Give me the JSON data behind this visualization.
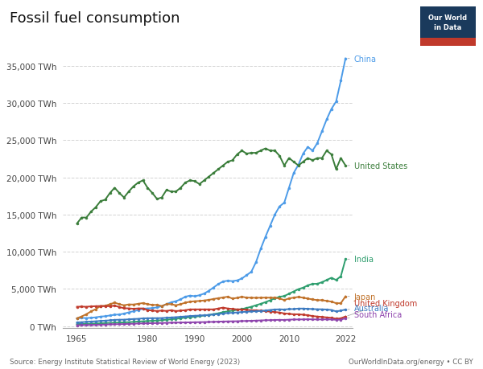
{
  "title": "Fossil fuel consumption",
  "subtitle_source": "Source: Energy Institute Statistical Review of World Energy (2023)",
  "subtitle_right": "OurWorldInData.org/energy • CC BY",
  "yticks": [
    0,
    5000,
    10000,
    15000,
    20000,
    25000,
    30000,
    35000
  ],
  "ytick_labels": [
    "0 TWh",
    "5,000 TWh",
    "10,000 TWh",
    "15,000 TWh",
    "20,000 TWh",
    "25,000 TWh",
    "30,000 TWh",
    "35,000 TWh"
  ],
  "xticks": [
    1965,
    1980,
    1990,
    2000,
    2010,
    2022
  ],
  "xlim": [
    1962,
    2023.5
  ],
  "ylim": [
    -300,
    37000
  ],
  "background_color": "#ffffff",
  "grid_color": "#d3d3d3",
  "series": {
    "China": {
      "color": "#4c9be8",
      "marker": "o",
      "markersize": 2.0,
      "linewidth": 1.4,
      "years": [
        1965,
        1966,
        1967,
        1968,
        1969,
        1970,
        1971,
        1972,
        1973,
        1974,
        1975,
        1976,
        1977,
        1978,
        1979,
        1980,
        1981,
        1982,
        1983,
        1984,
        1985,
        1986,
        1987,
        1988,
        1989,
        1990,
        1991,
        1992,
        1993,
        1994,
        1995,
        1996,
        1997,
        1998,
        1999,
        2000,
        2001,
        2002,
        2003,
        2004,
        2005,
        2006,
        2007,
        2008,
        2009,
        2010,
        2011,
        2012,
        2013,
        2014,
        2015,
        2016,
        2017,
        2018,
        2019,
        2020,
        2021,
        2022
      ],
      "values": [
        1050,
        1100,
        1080,
        1120,
        1180,
        1280,
        1330,
        1430,
        1530,
        1560,
        1680,
        1850,
        2000,
        2150,
        2350,
        2380,
        2420,
        2520,
        2680,
        2950,
        3200,
        3350,
        3600,
        3950,
        4100,
        4020,
        4150,
        4380,
        4750,
        5200,
        5650,
        6000,
        6100,
        6050,
        6150,
        6400,
        6850,
        7300,
        8600,
        10400,
        12000,
        13500,
        15000,
        16100,
        16600,
        18600,
        20600,
        21700,
        23200,
        24100,
        23600,
        24600,
        26200,
        27800,
        29200,
        30200,
        33000,
        36000
      ]
    },
    "United States": {
      "color": "#3a7d3a",
      "marker": "o",
      "markersize": 2.0,
      "linewidth": 1.4,
      "years": [
        1965,
        1966,
        1967,
        1968,
        1969,
        1970,
        1971,
        1972,
        1973,
        1974,
        1975,
        1976,
        1977,
        1978,
        1979,
        1980,
        1981,
        1982,
        1983,
        1984,
        1985,
        1986,
        1987,
        1988,
        1989,
        1990,
        1991,
        1992,
        1993,
        1994,
        1995,
        1996,
        1997,
        1998,
        1999,
        2000,
        2001,
        2002,
        2003,
        2004,
        2005,
        2006,
        2007,
        2008,
        2009,
        2010,
        2011,
        2012,
        2013,
        2014,
        2015,
        2016,
        2017,
        2018,
        2019,
        2020,
        2021,
        2022
      ],
      "values": [
        13800,
        14600,
        14600,
        15400,
        16000,
        16800,
        17000,
        17900,
        18600,
        17900,
        17300,
        18100,
        18800,
        19300,
        19600,
        18600,
        17900,
        17100,
        17300,
        18300,
        18100,
        18100,
        18600,
        19300,
        19600,
        19500,
        19100,
        19600,
        20100,
        20600,
        21100,
        21600,
        22100,
        22300,
        23100,
        23600,
        23200,
        23300,
        23300,
        23600,
        23900,
        23600,
        23600,
        22900,
        21600,
        22600,
        22100,
        21600,
        22100,
        22600,
        22300,
        22600,
        22600,
        23600,
        23100,
        21100,
        22600,
        21600
      ]
    },
    "India": {
      "color": "#2e9e6e",
      "marker": "o",
      "markersize": 2.0,
      "linewidth": 1.4,
      "years": [
        1965,
        1966,
        1967,
        1968,
        1969,
        1970,
        1971,
        1972,
        1973,
        1974,
        1975,
        1976,
        1977,
        1978,
        1979,
        1980,
        1981,
        1982,
        1983,
        1984,
        1985,
        1986,
        1987,
        1988,
        1989,
        1990,
        1991,
        1992,
        1993,
        1994,
        1995,
        1996,
        1997,
        1998,
        1999,
        2000,
        2001,
        2002,
        2003,
        2004,
        2005,
        2006,
        2007,
        2008,
        2009,
        2010,
        2011,
        2012,
        2013,
        2014,
        2015,
        2016,
        2017,
        2018,
        2019,
        2020,
        2021,
        2022
      ],
      "values": [
        270,
        290,
        300,
        320,
        345,
        375,
        405,
        430,
        460,
        475,
        500,
        535,
        570,
        610,
        650,
        680,
        715,
        755,
        800,
        860,
        920,
        985,
        1050,
        1150,
        1200,
        1260,
        1340,
        1420,
        1510,
        1620,
        1720,
        1880,
        1980,
        2080,
        2190,
        2290,
        2440,
        2600,
        2800,
        3000,
        3220,
        3470,
        3730,
        3940,
        4040,
        4350,
        4660,
        4970,
        5170,
        5480,
        5680,
        5690,
        5900,
        6200,
        6500,
        6200,
        6700,
        9000
      ]
    },
    "Japan": {
      "color": "#c0722a",
      "marker": "o",
      "markersize": 2.0,
      "linewidth": 1.4,
      "years": [
        1965,
        1966,
        1967,
        1968,
        1969,
        1970,
        1971,
        1972,
        1973,
        1974,
        1975,
        1976,
        1977,
        1978,
        1979,
        1980,
        1981,
        1982,
        1983,
        1984,
        1985,
        1986,
        1987,
        1988,
        1989,
        1990,
        1991,
        1992,
        1993,
        1994,
        1995,
        1996,
        1997,
        1998,
        1999,
        2000,
        2001,
        2002,
        2003,
        2004,
        2005,
        2006,
        2007,
        2008,
        2009,
        2010,
        2011,
        2012,
        2013,
        2014,
        2015,
        2016,
        2017,
        2018,
        2019,
        2020,
        2021,
        2022
      ],
      "values": [
        1050,
        1300,
        1600,
        1980,
        2280,
        2700,
        2720,
        2950,
        3150,
        2950,
        2800,
        2920,
        2900,
        3000,
        3100,
        2950,
        2850,
        2850,
        2700,
        2950,
        2950,
        2800,
        2950,
        3150,
        3280,
        3350,
        3380,
        3450,
        3530,
        3650,
        3750,
        3850,
        3950,
        3700,
        3800,
        3950,
        3830,
        3820,
        3800,
        3820,
        3830,
        3820,
        3820,
        3710,
        3510,
        3720,
        3830,
        3920,
        3820,
        3700,
        3590,
        3490,
        3490,
        3390,
        3290,
        3080,
        3080,
        4000
      ]
    },
    "United Kingdom": {
      "color": "#c0392b",
      "marker": "o",
      "markersize": 2.0,
      "linewidth": 1.4,
      "years": [
        1965,
        1966,
        1967,
        1968,
        1969,
        1970,
        1971,
        1972,
        1973,
        1974,
        1975,
        1976,
        1977,
        1978,
        1979,
        1980,
        1981,
        1982,
        1983,
        1984,
        1985,
        1986,
        1987,
        1988,
        1989,
        1990,
        1991,
        1992,
        1993,
        1994,
        1995,
        1996,
        1997,
        1998,
        1999,
        2000,
        2001,
        2002,
        2003,
        2004,
        2005,
        2006,
        2007,
        2008,
        2009,
        2010,
        2011,
        2012,
        2013,
        2014,
        2015,
        2016,
        2017,
        2018,
        2019,
        2020,
        2021,
        2022
      ],
      "values": [
        2600,
        2620,
        2600,
        2650,
        2680,
        2700,
        2680,
        2680,
        2750,
        2560,
        2400,
        2390,
        2330,
        2380,
        2380,
        2150,
        2090,
        2030,
        2080,
        2040,
        2140,
        2020,
        2080,
        2140,
        2250,
        2250,
        2250,
        2250,
        2250,
        2250,
        2370,
        2490,
        2370,
        2310,
        2250,
        2250,
        2190,
        2130,
        2130,
        2070,
        2010,
        1950,
        1890,
        1830,
        1700,
        1650,
        1590,
        1590,
        1530,
        1470,
        1350,
        1290,
        1230,
        1170,
        1110,
        990,
        1050,
        1290
      ]
    },
    "Australia": {
      "color": "#3c7ac0",
      "marker": "o",
      "markersize": 2.0,
      "linewidth": 1.4,
      "years": [
        1965,
        1966,
        1967,
        1968,
        1969,
        1970,
        1971,
        1972,
        1973,
        1974,
        1975,
        1976,
        1977,
        1978,
        1979,
        1980,
        1981,
        1982,
        1983,
        1984,
        1985,
        1986,
        1987,
        1988,
        1989,
        1990,
        1991,
        1992,
        1993,
        1994,
        1995,
        1996,
        1997,
        1998,
        1999,
        2000,
        2001,
        2002,
        2003,
        2004,
        2005,
        2006,
        2007,
        2008,
        2009,
        2010,
        2011,
        2012,
        2013,
        2014,
        2015,
        2016,
        2017,
        2018,
        2019,
        2020,
        2021,
        2022
      ],
      "values": [
        500,
        530,
        570,
        610,
        650,
        700,
        730,
        780,
        840,
        860,
        870,
        910,
        950,
        980,
        1040,
        1060,
        1070,
        1070,
        1080,
        1120,
        1160,
        1200,
        1250,
        1300,
        1350,
        1390,
        1420,
        1460,
        1500,
        1560,
        1620,
        1700,
        1760,
        1790,
        1840,
        1890,
        1930,
        1970,
        2000,
        2040,
        2100,
        2170,
        2230,
        2260,
        2230,
        2290,
        2290,
        2360,
        2360,
        2330,
        2290,
        2270,
        2260,
        2230,
        2170,
        1980,
        2080,
        2230
      ]
    },
    "South Africa": {
      "color": "#8e44ad",
      "marker": "o",
      "markersize": 2.0,
      "linewidth": 1.4,
      "years": [
        1965,
        1966,
        1967,
        1968,
        1969,
        1970,
        1971,
        1972,
        1973,
        1974,
        1975,
        1976,
        1977,
        1978,
        1979,
        1980,
        1981,
        1982,
        1983,
        1984,
        1985,
        1986,
        1987,
        1988,
        1989,
        1990,
        1991,
        1992,
        1993,
        1994,
        1995,
        1996,
        1997,
        1998,
        1999,
        2000,
        2001,
        2002,
        2003,
        2004,
        2005,
        2006,
        2007,
        2008,
        2009,
        2010,
        2011,
        2012,
        2013,
        2014,
        2015,
        2016,
        2017,
        2018,
        2019,
        2020,
        2021,
        2022
      ],
      "values": [
        120,
        130,
        145,
        160,
        175,
        190,
        210,
        230,
        250,
        265,
        275,
        300,
        325,
        345,
        360,
        385,
        395,
        405,
        420,
        445,
        455,
        470,
        480,
        495,
        505,
        520,
        530,
        545,
        555,
        570,
        595,
        620,
        635,
        645,
        655,
        680,
        695,
        715,
        740,
        765,
        790,
        805,
        825,
        840,
        830,
        865,
        890,
        890,
        905,
        920,
        905,
        895,
        895,
        905,
        890,
        845,
        870,
        1050
      ]
    }
  },
  "labels": {
    "China": {
      "y": 36000,
      "color": "#4c9be8"
    },
    "United States": {
      "y": 21600,
      "color": "#3a7d3a"
    },
    "India": {
      "y": 9000,
      "color": "#2e9e6e"
    },
    "Japan": {
      "y": 4000,
      "color": "#c0722a"
    },
    "United Kingdom": {
      "y": 3100,
      "color": "#c0392b"
    },
    "Australia": {
      "y": 2400,
      "color": "#3c7ac0"
    },
    "South Africa": {
      "y": 1600,
      "color": "#8e44ad"
    }
  }
}
